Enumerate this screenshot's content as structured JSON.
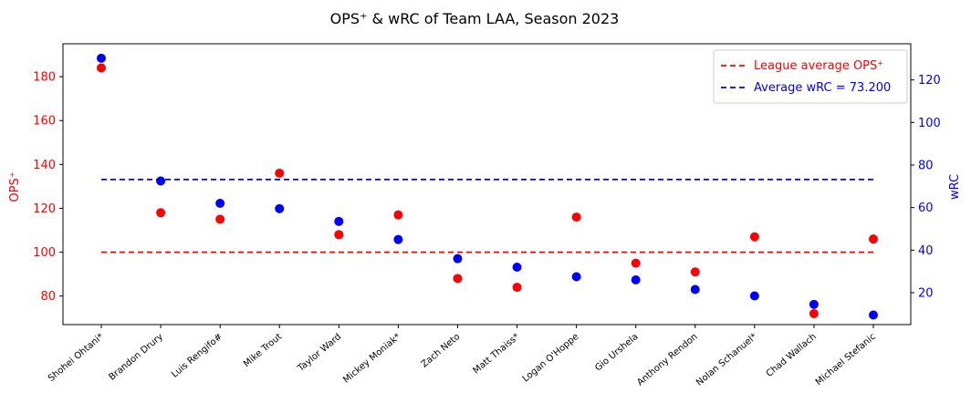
{
  "chart_data": {
    "type": "scatter",
    "title": "OPS⁺ & wRC of Team LAA, Season 2023",
    "ylabel_left": "OPS⁺",
    "ylabel_right": "wRC",
    "categories": [
      "Shohei Ohtani*",
      "Brandon Drury",
      "Luis Rengifo#",
      "Mike Trout",
      "Taylor Ward",
      "Mickey Moniak*",
      "Zach Neto",
      "Matt Thaiss*",
      "Logan O'Hoppe",
      "Gio Urshela",
      "Anthony Rendon",
      "Nolan Schanuel*",
      "Chad Wallach",
      "Michael Stefanic"
    ],
    "series": [
      {
        "name": "OPS⁺",
        "axis": "left",
        "color": "#ff0000",
        "values": [
          184,
          118,
          115,
          136,
          108,
          117,
          88,
          84,
          116,
          95,
          91,
          107,
          72,
          106
        ]
      },
      {
        "name": "wRC",
        "axis": "right",
        "color": "#0000ff",
        "values": [
          130.2,
          72.5,
          62.0,
          59.5,
          53.5,
          45.0,
          36.0,
          32.0,
          27.5,
          26.0,
          21.5,
          18.5,
          14.5,
          9.5
        ]
      }
    ],
    "reference_lines": [
      {
        "label": "League average OPS⁺",
        "axis": "left",
        "value": 100,
        "color": "#ff0000",
        "style": "dashed"
      },
      {
        "label": "Average wRC = 73.200",
        "axis": "right",
        "value": 73.2,
        "color": "#0000ff",
        "style": "dashed"
      }
    ],
    "ylim_left": [
      67,
      195
    ],
    "ylim_right": [
      5,
      137
    ],
    "yticks_left": [
      80,
      100,
      120,
      140,
      160,
      180
    ],
    "yticks_right": [
      20,
      40,
      60,
      80,
      100,
      120
    ],
    "legend_position": "upper-right",
    "grid": false
  }
}
